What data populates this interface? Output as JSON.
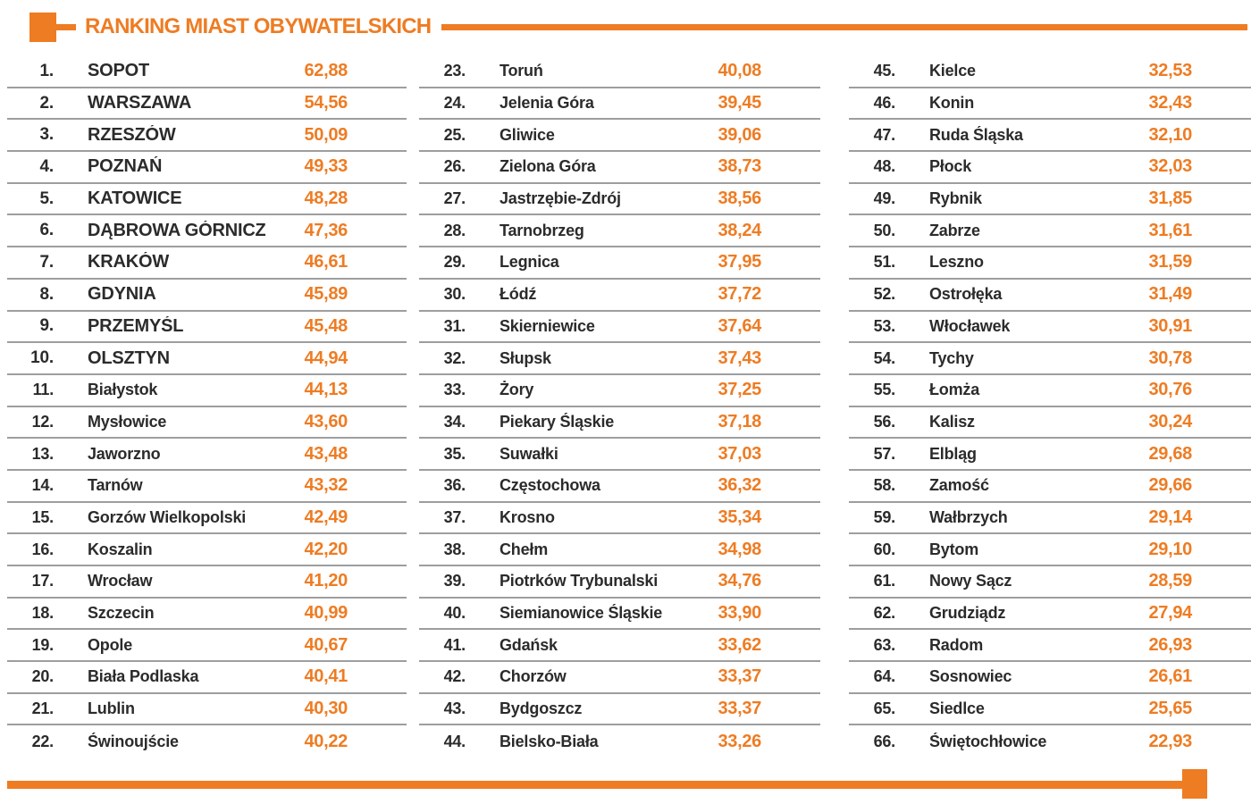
{
  "header": {
    "title": "RANKING MIAST OBYWATELSKICH"
  },
  "colors": {
    "accent": "#ee7c23",
    "text": "#2b2b2b",
    "divider": "#9e9e9e"
  },
  "chart_data": {
    "type": "table",
    "title": "RANKING MIAST OBYWATELSKICH",
    "columns": [
      "rank",
      "city",
      "score"
    ],
    "layout": {
      "columns": 3,
      "rows_per_column": 22
    },
    "rows": [
      {
        "rank": "1.",
        "city": "SOPOT",
        "score": "62,88",
        "top": true
      },
      {
        "rank": "2.",
        "city": "WARSZAWA",
        "score": "54,56",
        "top": true
      },
      {
        "rank": "3.",
        "city": "RZESZÓW",
        "score": "50,09",
        "top": true
      },
      {
        "rank": "4.",
        "city": "POZNAŃ",
        "score": "49,33",
        "top": true
      },
      {
        "rank": "5.",
        "city": "KATOWICE",
        "score": "48,28",
        "top": true
      },
      {
        "rank": "6.",
        "city": "DĄBROWA GÓRNICZA",
        "score": "47,36",
        "top": true
      },
      {
        "rank": "7.",
        "city": "KRAKÓW",
        "score": "46,61",
        "top": true
      },
      {
        "rank": "8.",
        "city": "GDYNIA",
        "score": "45,89",
        "top": true
      },
      {
        "rank": "9.",
        "city": "PRZEMYŚL",
        "score": "45,48",
        "top": true
      },
      {
        "rank": "10.",
        "city": "OLSZTYN",
        "score": "44,94",
        "top": true
      },
      {
        "rank": "11.",
        "city": "Białystok",
        "score": "44,13",
        "top": false
      },
      {
        "rank": "12.",
        "city": "Mysłowice",
        "score": "43,60",
        "top": false
      },
      {
        "rank": "13.",
        "city": "Jaworzno",
        "score": "43,48",
        "top": false
      },
      {
        "rank": "14.",
        "city": "Tarnów",
        "score": "43,32",
        "top": false
      },
      {
        "rank": "15.",
        "city": "Gorzów Wielkopolski",
        "score": "42,49",
        "top": false
      },
      {
        "rank": "16.",
        "city": "Koszalin",
        "score": "42,20",
        "top": false
      },
      {
        "rank": "17.",
        "city": "Wrocław",
        "score": "41,20",
        "top": false
      },
      {
        "rank": "18.",
        "city": "Szczecin",
        "score": "40,99",
        "top": false
      },
      {
        "rank": "19.",
        "city": "Opole",
        "score": "40,67",
        "top": false
      },
      {
        "rank": "20.",
        "city": "Biała Podlaska",
        "score": "40,41",
        "top": false
      },
      {
        "rank": "21.",
        "city": "Lublin",
        "score": "40,30",
        "top": false
      },
      {
        "rank": "22.",
        "city": "Świnoujście",
        "score": "40,22",
        "top": false
      },
      {
        "rank": "23.",
        "city": "Toruń",
        "score": "40,08",
        "top": false
      },
      {
        "rank": "24.",
        "city": "Jelenia Góra",
        "score": "39,45",
        "top": false
      },
      {
        "rank": "25.",
        "city": "Gliwice",
        "score": "39,06",
        "top": false
      },
      {
        "rank": "26.",
        "city": "Zielona Góra",
        "score": "38,73",
        "top": false
      },
      {
        "rank": "27.",
        "city": "Jastrzębie-Zdrój",
        "score": "38,56",
        "top": false
      },
      {
        "rank": "28.",
        "city": "Tarnobrzeg",
        "score": "38,24",
        "top": false
      },
      {
        "rank": "29.",
        "city": "Legnica",
        "score": "37,95",
        "top": false
      },
      {
        "rank": "30.",
        "city": "Łódź",
        "score": "37,72",
        "top": false
      },
      {
        "rank": "31.",
        "city": "Skierniewice",
        "score": "37,64",
        "top": false
      },
      {
        "rank": "32.",
        "city": "Słupsk",
        "score": "37,43",
        "top": false
      },
      {
        "rank": "33.",
        "city": "Żory",
        "score": "37,25",
        "top": false
      },
      {
        "rank": "34.",
        "city": "Piekary Śląskie",
        "score": "37,18",
        "top": false
      },
      {
        "rank": "35.",
        "city": "Suwałki",
        "score": "37,03",
        "top": false
      },
      {
        "rank": "36.",
        "city": "Częstochowa",
        "score": "36,32",
        "top": false
      },
      {
        "rank": "37.",
        "city": "Krosno",
        "score": "35,34",
        "top": false
      },
      {
        "rank": "38.",
        "city": "Chełm",
        "score": "34,98",
        "top": false
      },
      {
        "rank": "39.",
        "city": "Piotrków Trybunalski",
        "score": "34,76",
        "top": false
      },
      {
        "rank": "40.",
        "city": "Siemianowice Śląskie",
        "score": "33,90",
        "top": false
      },
      {
        "rank": "41.",
        "city": "Gdańsk",
        "score": "33,62",
        "top": false
      },
      {
        "rank": "42.",
        "city": "Chorzów",
        "score": "33,37",
        "top": false
      },
      {
        "rank": "43.",
        "city": "Bydgoszcz",
        "score": "33,37",
        "top": false
      },
      {
        "rank": "44.",
        "city": "Bielsko-Biała",
        "score": "33,26",
        "top": false
      },
      {
        "rank": "45.",
        "city": "Kielce",
        "score": "32,53",
        "top": false
      },
      {
        "rank": "46.",
        "city": "Konin",
        "score": "32,43",
        "top": false
      },
      {
        "rank": "47.",
        "city": "Ruda Śląska",
        "score": "32,10",
        "top": false
      },
      {
        "rank": "48.",
        "city": "Płock",
        "score": "32,03",
        "top": false
      },
      {
        "rank": "49.",
        "city": "Rybnik",
        "score": "31,85",
        "top": false
      },
      {
        "rank": "50.",
        "city": "Zabrze",
        "score": "31,61",
        "top": false
      },
      {
        "rank": "51.",
        "city": "Leszno",
        "score": "31,59",
        "top": false
      },
      {
        "rank": "52.",
        "city": "Ostrołęka",
        "score": "31,49",
        "top": false
      },
      {
        "rank": "53.",
        "city": "Włocławek",
        "score": "30,91",
        "top": false
      },
      {
        "rank": "54.",
        "city": "Tychy",
        "score": "30,78",
        "top": false
      },
      {
        "rank": "55.",
        "city": "Łomża",
        "score": "30,76",
        "top": false
      },
      {
        "rank": "56.",
        "city": "Kalisz",
        "score": "30,24",
        "top": false
      },
      {
        "rank": "57.",
        "city": "Elbląg",
        "score": "29,68",
        "top": false
      },
      {
        "rank": "58.",
        "city": "Zamość",
        "score": "29,66",
        "top": false
      },
      {
        "rank": "59.",
        "city": "Wałbrzych",
        "score": "29,14",
        "top": false
      },
      {
        "rank": "60.",
        "city": "Bytom",
        "score": "29,10",
        "top": false
      },
      {
        "rank": "61.",
        "city": "Nowy Sącz",
        "score": "28,59",
        "top": false
      },
      {
        "rank": "62.",
        "city": "Grudziądz",
        "score": "27,94",
        "top": false
      },
      {
        "rank": "63.",
        "city": "Radom",
        "score": "26,93",
        "top": false
      },
      {
        "rank": "64.",
        "city": "Sosnowiec",
        "score": "26,61",
        "top": false
      },
      {
        "rank": "65.",
        "city": "Siedlce",
        "score": "25,65",
        "top": false
      },
      {
        "rank": "66.",
        "city": "Świętochłowice",
        "score": "22,93",
        "top": false
      }
    ]
  }
}
